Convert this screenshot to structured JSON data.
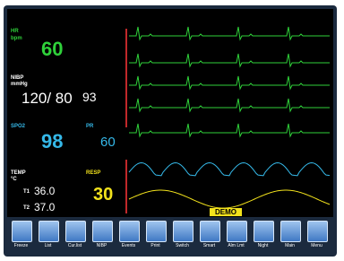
{
  "status": {
    "badge": "DEMO"
  },
  "params": {
    "hr": {
      "label": "HR",
      "unit": "bpm",
      "value": "60"
    },
    "nibp": {
      "label": "NIBP",
      "unit": "mmHg",
      "value": "120/ 80",
      "mean": "93"
    },
    "spo2": {
      "label": "SPO2",
      "value": "98"
    },
    "pr": {
      "label": "PR",
      "value": "60"
    },
    "temp": {
      "label": "TEMP",
      "unit": "°C",
      "t1_label": "T1",
      "t1": "36.0",
      "t2_label": "T2",
      "t2": "37.0"
    },
    "resp": {
      "label": "RESP",
      "value": "30"
    }
  },
  "toolbar": [
    "Freeze",
    "List",
    "Cur.list",
    "NIBP",
    "Events",
    "Print",
    "Switch",
    "Smart",
    "Alm Lmt",
    "Night",
    "Main",
    "Menu"
  ]
}
